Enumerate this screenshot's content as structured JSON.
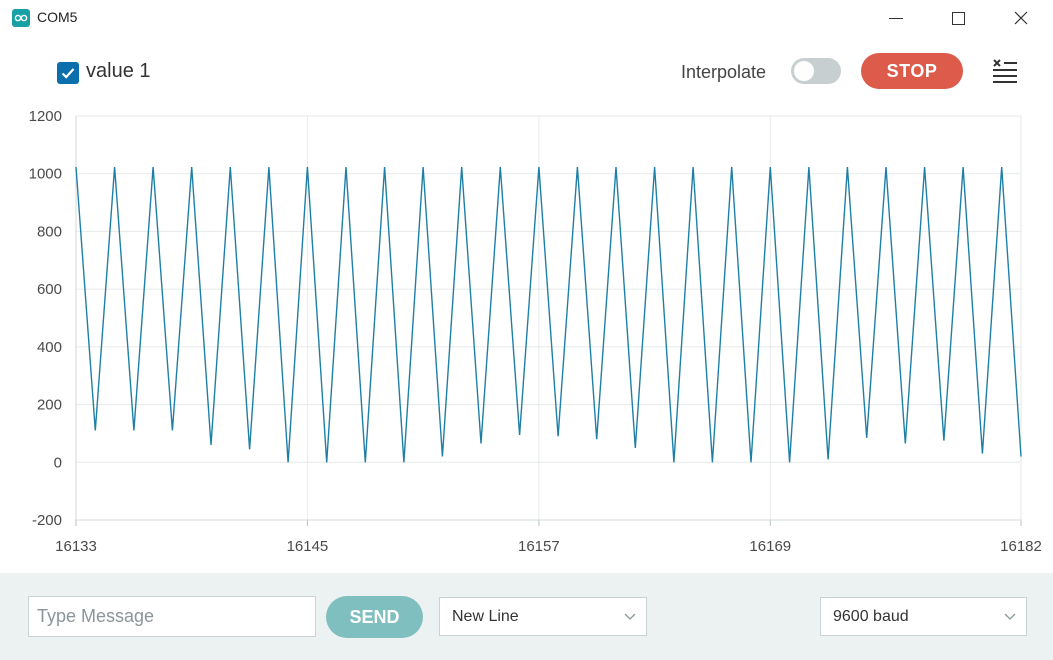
{
  "window": {
    "title": "COM5",
    "minimize_glyph": "—",
    "maximize_icon": "maximize-icon",
    "close_icon": "close-icon"
  },
  "toolbar": {
    "series_label": "value 1",
    "series_checked": true,
    "interpolate_label": "Interpolate",
    "interpolate_on": false,
    "stop_label": "STOP",
    "clear_icon": "clear-output-icon"
  },
  "colors": {
    "series": "#1e7fa6",
    "checkbox": "#0a6fab",
    "stop": "#dc5b4a",
    "send": "#7fbfbf",
    "bottom_bar": "#ecf1f1"
  },
  "chart_data": {
    "type": "line",
    "ylim": [
      -200,
      1200
    ],
    "yticks": [
      1200,
      1000,
      800,
      600,
      400,
      200,
      0,
      -200
    ],
    "xlim": [
      16133,
      16182
    ],
    "xticks": [
      16133,
      16145,
      16157,
      16169,
      16182
    ],
    "grid": true,
    "series": [
      {
        "name": "value 1",
        "x": [
          16133,
          16134,
          16135,
          16136,
          16137,
          16138,
          16139,
          16140,
          16141,
          16142,
          16143,
          16144,
          16145,
          16146,
          16147,
          16148,
          16149,
          16150,
          16151,
          16152,
          16153,
          16154,
          16155,
          16156,
          16157,
          16158,
          16159,
          16160,
          16161,
          16162,
          16163,
          16164,
          16165,
          16166,
          16167,
          16168,
          16169,
          16170,
          16171,
          16172,
          16173,
          16174,
          16175,
          16176,
          16177,
          16178,
          16179,
          16180,
          16181,
          16182
        ],
        "values": [
          1023,
          110,
          1023,
          110,
          1023,
          110,
          1023,
          60,
          1023,
          45,
          1023,
          0,
          1023,
          0,
          1023,
          0,
          1023,
          0,
          1023,
          20,
          1023,
          65,
          1023,
          95,
          1023,
          90,
          1023,
          80,
          1023,
          50,
          1023,
          0,
          1023,
          0,
          1023,
          0,
          1023,
          0,
          1023,
          10,
          1023,
          85,
          1023,
          65,
          1023,
          75,
          1023,
          30,
          1023,
          20
        ]
      }
    ]
  },
  "bottom": {
    "message_placeholder": "Type Message",
    "message_value": "",
    "send_label": "SEND",
    "line_ending": "New Line",
    "baud_rate": "9600 baud",
    "chevron_icon": "chevron-down-icon"
  }
}
